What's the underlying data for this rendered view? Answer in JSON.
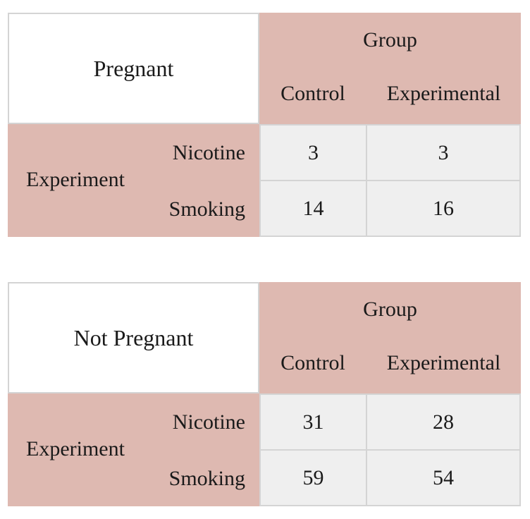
{
  "tables": [
    {
      "title": "Pregnant",
      "group_label": "Group",
      "columns": [
        "Control",
        "Experimental"
      ],
      "row_group_label": "Experiment",
      "rows": [
        {
          "label": "Nicotine",
          "values": [
            "3",
            "3"
          ]
        },
        {
          "label": "Smoking",
          "values": [
            "14",
            "16"
          ]
        }
      ]
    },
    {
      "title": "Not Pregnant",
      "group_label": "Group",
      "columns": [
        "Control",
        "Experimental"
      ],
      "row_group_label": "Experiment",
      "rows": [
        {
          "label": "Nicotine",
          "values": [
            "31",
            "28"
          ]
        },
        {
          "label": "Smoking",
          "values": [
            "59",
            "54"
          ]
        }
      ]
    }
  ],
  "colors": {
    "header_fill": "#deb9b1",
    "value_fill": "#efefef",
    "border": "#d4d4d4"
  }
}
